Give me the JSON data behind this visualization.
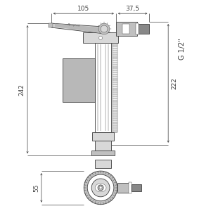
{
  "bg_color": "#ffffff",
  "line_color": "#404040",
  "dim_color": "#404040",
  "fill_gray": "#b8b8b8",
  "fill_light": "#d8d8d8",
  "fill_mid": "#c0c0c0",
  "fill_dark": "#888888",
  "fig_width": 3.0,
  "fig_height": 3.0,
  "dim_105_label": "105",
  "dim_375_label": "37,5",
  "dim_242_label": "242",
  "dim_222_label": "222",
  "dim_55_label": "55",
  "thread_label": "G 1/2\""
}
